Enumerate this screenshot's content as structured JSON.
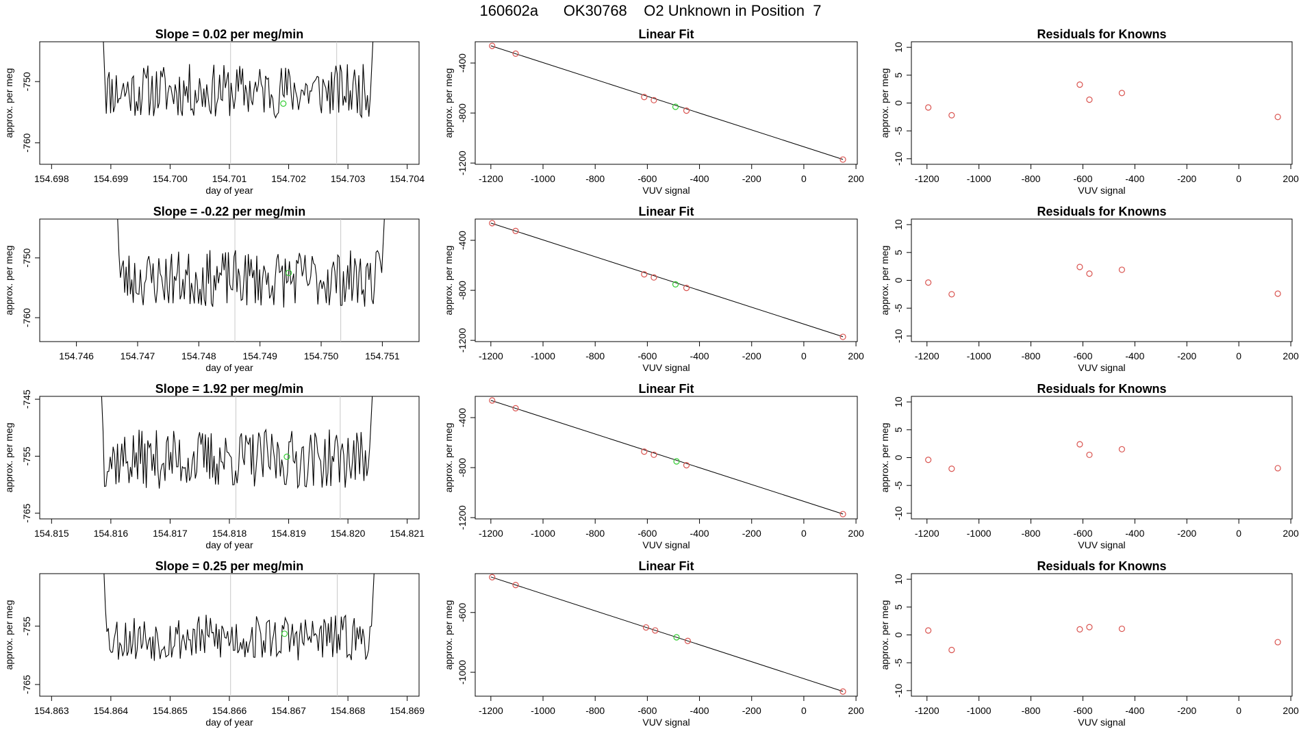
{
  "figure": {
    "title": "160602a      OK30768    O2 Unknown in Position  7",
    "colors": {
      "trace": "#000000",
      "known": "#d9534f",
      "unknown": "#33cc33",
      "guide": "#c8c8c8"
    }
  },
  "chart_data": [
    {
      "type": "line",
      "row": 1,
      "title": "Slope =  0.02  per meg/min",
      "xlabel": "day of year",
      "ylabel": "approx. per meg",
      "xlim": [
        154.6978,
        154.7042
      ],
      "ylim": [
        -763.5,
        -743.5
      ],
      "x_ticks": [
        154.698,
        154.699,
        154.7,
        154.701,
        154.702,
        154.703,
        154.704
      ],
      "x_tick_labels": [
        "154.698",
        "154.699",
        "154.700",
        "154.701",
        "154.702",
        "154.703",
        "154.704"
      ],
      "y_ticks": [
        -750,
        -760
      ],
      "y_tick_labels": [
        "-750",
        "-760"
      ],
      "vlines": [
        154.70102,
        154.70281
      ],
      "trace_span": [
        154.69885,
        154.70345
      ],
      "unknown_points": [
        {
          "x": 154.70191,
          "y": -753.6
        }
      ],
      "noise": {
        "center": -751.5,
        "amp": 4.4,
        "seed": 11
      }
    },
    {
      "type": "scatter",
      "row": 1,
      "title": "Linear Fit",
      "xlabel": "VUV signal",
      "ylabel": "approx. per meg",
      "xlim": [
        -1260,
        205
      ],
      "ylim": [
        -1210,
        -230
      ],
      "x_ticks": [
        -1200,
        -1000,
        -800,
        -600,
        -400,
        -200,
        0,
        200
      ],
      "x_tick_labels": [
        "-1200",
        "-1000",
        "-800",
        "-600",
        "-400",
        "-200",
        "0",
        "200"
      ],
      "y_ticks": [
        -400,
        -800,
        -1200
      ],
      "y_tick_labels": [
        "-400",
        "-800",
        "-1200"
      ],
      "fit_line": [
        [
          -1200,
          -262
        ],
        [
          150,
          -1171
        ]
      ],
      "known_points": [
        {
          "x": -1195,
          "y": -263
        },
        {
          "x": -1105,
          "y": -325
        },
        {
          "x": -612,
          "y": -672
        },
        {
          "x": -575,
          "y": -697
        },
        {
          "x": -450,
          "y": -781
        },
        {
          "x": 150,
          "y": -1172
        }
      ],
      "unknown_points": [
        {
          "x": -492,
          "y": -750
        }
      ]
    },
    {
      "type": "scatter",
      "row": 1,
      "title": "Residuals for Knowns",
      "xlabel": "VUV signal",
      "ylabel": "approx. per meg",
      "xlim": [
        -1260,
        205
      ],
      "ylim": [
        -11,
        11
      ],
      "x_ticks": [
        -1200,
        -1000,
        -800,
        -600,
        -400,
        -200,
        0,
        200
      ],
      "x_tick_labels": [
        "-1200",
        "-1000",
        "-800",
        "-600",
        "-400",
        "-200",
        "0",
        "200"
      ],
      "y_ticks": [
        -10,
        -5,
        0,
        5,
        10
      ],
      "y_tick_labels": [
        "-10",
        "-5",
        "0",
        "5",
        "10"
      ],
      "known_points": [
        {
          "x": -1195,
          "y": -0.8
        },
        {
          "x": -1105,
          "y": -2.2
        },
        {
          "x": -612,
          "y": 3.3
        },
        {
          "x": -575,
          "y": 0.6
        },
        {
          "x": -450,
          "y": 1.8
        },
        {
          "x": 150,
          "y": -2.5
        }
      ]
    },
    {
      "type": "line",
      "row": 2,
      "title": "Slope =  -0.22  per meg/min",
      "xlabel": "day of year",
      "ylabel": "approx. per meg",
      "xlim": [
        154.7454,
        154.7516
      ],
      "ylim": [
        -764,
        -743.5
      ],
      "x_ticks": [
        154.746,
        154.747,
        154.748,
        154.749,
        154.75,
        154.751
      ],
      "x_tick_labels": [
        "154.746",
        "154.747",
        "154.748",
        "154.749",
        "154.750",
        "154.751"
      ],
      "y_ticks": [
        -750,
        -760
      ],
      "y_tick_labels": [
        "-750",
        "-760"
      ],
      "vlines": [
        154.74859,
        154.75032
      ],
      "trace_span": [
        154.74665,
        154.75106
      ],
      "unknown_points": [
        {
          "x": 154.74947,
          "y": -752.5
        }
      ],
      "noise": {
        "center": -753.5,
        "amp": 4.8,
        "seed": 23
      }
    },
    {
      "type": "scatter",
      "row": 2,
      "title": "Linear Fit",
      "xlabel": "VUV signal",
      "ylabel": "approx. per meg",
      "xlim": [
        -1260,
        205
      ],
      "ylim": [
        -1210,
        -230
      ],
      "x_ticks": [
        -1200,
        -1000,
        -800,
        -600,
        -400,
        -200,
        0,
        200
      ],
      "x_tick_labels": [
        "-1200",
        "-1000",
        "-800",
        "-600",
        "-400",
        "-200",
        "0",
        "200"
      ],
      "y_ticks": [
        -400,
        -800,
        -1200
      ],
      "y_tick_labels": [
        "-400",
        "-800",
        "-1200"
      ],
      "fit_line": [
        [
          -1200,
          -262
        ],
        [
          150,
          -1171
        ]
      ],
      "known_points": [
        {
          "x": -1195,
          "y": -263
        },
        {
          "x": -1105,
          "y": -325
        },
        {
          "x": -612,
          "y": -672
        },
        {
          "x": -575,
          "y": -697
        },
        {
          "x": -450,
          "y": -781
        },
        {
          "x": 150,
          "y": -1172
        }
      ],
      "unknown_points": [
        {
          "x": -492,
          "y": -752
        }
      ]
    },
    {
      "type": "scatter",
      "row": 2,
      "title": "Residuals for Knowns",
      "xlabel": "VUV signal",
      "ylabel": "approx. per meg",
      "xlim": [
        -1260,
        205
      ],
      "ylim": [
        -11,
        11
      ],
      "x_ticks": [
        -1200,
        -1000,
        -800,
        -600,
        -400,
        -200,
        0,
        200
      ],
      "x_tick_labels": [
        "-1200",
        "-1000",
        "-800",
        "-600",
        "-400",
        "-200",
        "0",
        "200"
      ],
      "y_ticks": [
        -10,
        -5,
        0,
        5,
        10
      ],
      "y_tick_labels": [
        "-10",
        "-5",
        "0",
        "5",
        "10"
      ],
      "known_points": [
        {
          "x": -1195,
          "y": -0.4
        },
        {
          "x": -1105,
          "y": -2.5
        },
        {
          "x": -612,
          "y": 2.4
        },
        {
          "x": -575,
          "y": 1.2
        },
        {
          "x": -450,
          "y": 1.9
        },
        {
          "x": 150,
          "y": -2.4
        }
      ]
    },
    {
      "type": "line",
      "row": 3,
      "title": "Slope =  1.92  per meg/min",
      "xlabel": "day of year",
      "ylabel": "approx. per meg",
      "xlim": [
        154.8148,
        154.8212
      ],
      "ylim": [
        -766,
        -744.5
      ],
      "x_ticks": [
        154.815,
        154.816,
        154.817,
        154.818,
        154.819,
        154.82,
        154.821
      ],
      "x_tick_labels": [
        "154.815",
        "154.816",
        "154.817",
        "154.818",
        "154.819",
        "154.820",
        "154.821"
      ],
      "y_ticks": [
        -745,
        -755,
        -765
      ],
      "y_tick_labels": [
        "-745",
        "-755",
        "-765"
      ],
      "vlines": [
        154.81811,
        154.81987
      ],
      "trace_span": [
        154.81582,
        154.82044
      ],
      "unknown_points": [
        {
          "x": 154.81897,
          "y": -755.1
        }
      ],
      "noise": {
        "center": -755.5,
        "amp": 5.2,
        "seed": 37
      }
    },
    {
      "type": "scatter",
      "row": 3,
      "title": "Linear Fit",
      "xlabel": "VUV signal",
      "ylabel": "approx. per meg",
      "xlim": [
        -1260,
        205
      ],
      "ylim": [
        -1210,
        -230
      ],
      "x_ticks": [
        -1200,
        -1000,
        -800,
        -600,
        -400,
        -200,
        0,
        200
      ],
      "x_tick_labels": [
        "-1200",
        "-1000",
        "-800",
        "-600",
        "-400",
        "-200",
        "0",
        "200"
      ],
      "y_ticks": [
        -400,
        -800,
        -1200
      ],
      "y_tick_labels": [
        "-400",
        "-800",
        "-1200"
      ],
      "fit_line": [
        [
          -1200,
          -262
        ],
        [
          150,
          -1171
        ]
      ],
      "known_points": [
        {
          "x": -1195,
          "y": -263
        },
        {
          "x": -1105,
          "y": -325
        },
        {
          "x": -612,
          "y": -672
        },
        {
          "x": -575,
          "y": -697
        },
        {
          "x": -450,
          "y": -781
        },
        {
          "x": 150,
          "y": -1172
        }
      ],
      "unknown_points": [
        {
          "x": -488,
          "y": -750
        }
      ]
    },
    {
      "type": "scatter",
      "row": 3,
      "title": "Residuals for Knowns",
      "xlabel": "VUV signal",
      "ylabel": "approx. per meg",
      "xlim": [
        -1260,
        205
      ],
      "ylim": [
        -11,
        11
      ],
      "x_ticks": [
        -1200,
        -1000,
        -800,
        -600,
        -400,
        -200,
        0,
        200
      ],
      "x_tick_labels": [
        "-1200",
        "-1000",
        "-800",
        "-600",
        "-400",
        "-200",
        "0",
        "200"
      ],
      "y_ticks": [
        -10,
        -5,
        0,
        5,
        10
      ],
      "y_tick_labels": [
        "-10",
        "-5",
        "0",
        "5",
        "10"
      ],
      "known_points": [
        {
          "x": -1195,
          "y": -0.4
        },
        {
          "x": -1105,
          "y": -2.0
        },
        {
          "x": -612,
          "y": 2.4
        },
        {
          "x": -575,
          "y": 0.5
        },
        {
          "x": -450,
          "y": 1.5
        },
        {
          "x": 150,
          "y": -1.9
        }
      ]
    },
    {
      "type": "line",
      "row": 4,
      "title": "Slope =  0.25  per meg/min",
      "xlabel": "day of year",
      "ylabel": "approx. per meg",
      "xlim": [
        154.8628,
        154.8692
      ],
      "ylim": [
        -767,
        -746
      ],
      "x_ticks": [
        154.863,
        154.864,
        154.865,
        154.866,
        154.867,
        154.868,
        154.869
      ],
      "x_tick_labels": [
        "154.863",
        "154.864",
        "154.865",
        "154.866",
        "154.867",
        "154.868",
        "154.869"
      ],
      "y_ticks": [
        -755,
        -765
      ],
      "y_tick_labels": [
        "-755",
        "-765"
      ],
      "vlines": [
        154.86602,
        154.86782
      ],
      "trace_span": [
        154.86386,
        154.86847
      ],
      "unknown_points": [
        {
          "x": 154.86693,
          "y": -756.3
        }
      ],
      "noise": {
        "center": -757.0,
        "amp": 4.0,
        "seed": 53
      }
    },
    {
      "type": "scatter",
      "row": 4,
      "title": "Linear Fit",
      "xlabel": "VUV signal",
      "ylabel": "approx. per meg",
      "xlim": [
        -1260,
        205
      ],
      "ylim": [
        -1160,
        -340
      ],
      "x_ticks": [
        -1200,
        -1000,
        -800,
        -600,
        -400,
        -200,
        0,
        200
      ],
      "x_tick_labels": [
        "-1200",
        "-1000",
        "-800",
        "-600",
        "-400",
        "-200",
        "0",
        "200"
      ],
      "y_ticks": [
        -600,
        -1000
      ],
      "y_tick_labels": [
        "-600",
        "-1000"
      ],
      "fit_line": [
        [
          -1200,
          -362
        ],
        [
          150,
          -1128
        ]
      ],
      "known_points": [
        {
          "x": -1195,
          "y": -364
        },
        {
          "x": -1105,
          "y": -416
        },
        {
          "x": -605,
          "y": -700
        },
        {
          "x": -570,
          "y": -720
        },
        {
          "x": -445,
          "y": -790
        },
        {
          "x": 150,
          "y": -1129
        }
      ],
      "unknown_points": [
        {
          "x": -488,
          "y": -766
        }
      ]
    },
    {
      "type": "scatter",
      "row": 4,
      "title": "Residuals for Knowns",
      "xlabel": "VUV signal",
      "ylabel": "approx. per meg",
      "xlim": [
        -1260,
        205
      ],
      "ylim": [
        -11,
        11
      ],
      "x_ticks": [
        -1200,
        -1000,
        -800,
        -600,
        -400,
        -200,
        0,
        200
      ],
      "x_tick_labels": [
        "-1200",
        "-1000",
        "-800",
        "-600",
        "-400",
        "-200",
        "0",
        "200"
      ],
      "y_ticks": [
        -10,
        -5,
        0,
        5,
        10
      ],
      "y_tick_labels": [
        "-10",
        "-5",
        "0",
        "5",
        "10"
      ],
      "known_points": [
        {
          "x": -1195,
          "y": 0.8
        },
        {
          "x": -1105,
          "y": -2.7
        },
        {
          "x": -612,
          "y": 1.0
        },
        {
          "x": -575,
          "y": 1.4
        },
        {
          "x": -450,
          "y": 1.1
        },
        {
          "x": 150,
          "y": -1.3
        }
      ]
    }
  ]
}
